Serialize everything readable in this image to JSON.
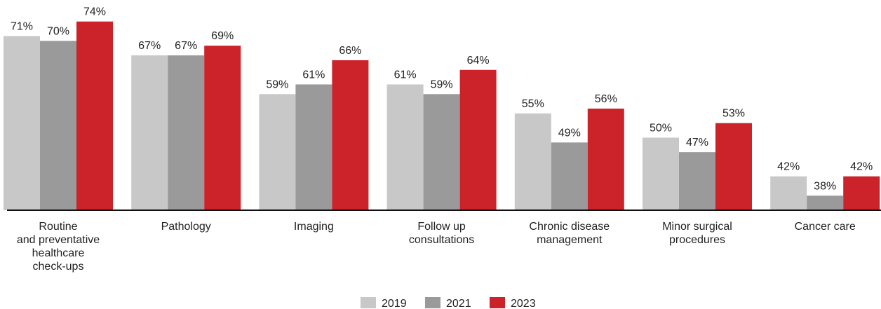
{
  "chart_data": {
    "type": "bar",
    "categories": [
      "Routine\nand preventative\nhealthcare\ncheck-ups",
      "Pathology",
      "Imaging",
      "Follow up\nconsultations",
      "Chronic disease\nmanagement",
      "Minor surgical\nprocedures",
      "Cancer care"
    ],
    "series": [
      {
        "name": "2019",
        "color": "#c8c8c8",
        "values": [
          71,
          67,
          59,
          61,
          55,
          50,
          42
        ],
        "value_labels": [
          "71%",
          "67%",
          "59%",
          "61%",
          "55%",
          "50%",
          "42%"
        ]
      },
      {
        "name": "2021",
        "color": "#9a9a9a",
        "values": [
          70,
          67,
          61,
          59,
          49,
          47,
          38
        ],
        "value_labels": [
          "70%",
          "67%",
          "61%",
          "59%",
          "49%",
          "47%",
          "38%"
        ]
      },
      {
        "name": "2023",
        "color": "#cc2229",
        "values": [
          74,
          69,
          66,
          64,
          56,
          53,
          42
        ],
        "value_labels": [
          "74%",
          "69%",
          "66%",
          "64%",
          "56%",
          "53%",
          "42%"
        ]
      }
    ],
    "ylim": [
      35,
      77
    ],
    "legend": "bottom"
  }
}
